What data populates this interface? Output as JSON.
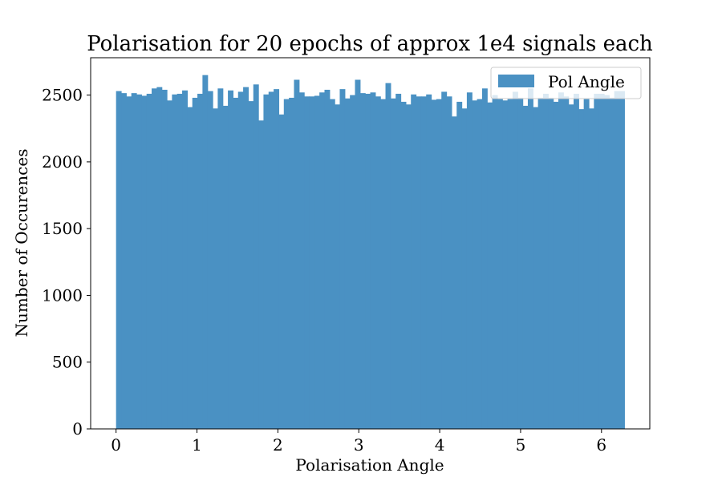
{
  "chart_data": {
    "type": "bar",
    "title": "Polarisation for 20 epochs of approx 1e4 signals each",
    "xlabel": "Polarisation Angle",
    "ylabel": "Number of Occurences",
    "xlim": [
      -0.314,
      6.597
    ],
    "ylim": [
      0,
      2780
    ],
    "bin_range": [
      0,
      6.2832
    ],
    "xticks": [
      0,
      1,
      2,
      3,
      4,
      5,
      6
    ],
    "yticks": [
      0,
      500,
      1000,
      1500,
      2000,
      2500
    ],
    "grid": false,
    "legend_position": "top-right",
    "bar_color": "#4a91c3",
    "series": [
      {
        "name": "Pol Angle",
        "values": [
          2530,
          2515,
          2490,
          2515,
          2505,
          2495,
          2510,
          2550,
          2560,
          2540,
          2460,
          2505,
          2510,
          2535,
          2410,
          2480,
          2510,
          2650,
          2530,
          2400,
          2550,
          2420,
          2535,
          2480,
          2525,
          2560,
          2455,
          2580,
          2310,
          2505,
          2525,
          2545,
          2355,
          2470,
          2480,
          2615,
          2520,
          2490,
          2490,
          2495,
          2520,
          2540,
          2470,
          2430,
          2545,
          2475,
          2500,
          2615,
          2515,
          2510,
          2520,
          2490,
          2470,
          2590,
          2475,
          2510,
          2450,
          2430,
          2505,
          2490,
          2490,
          2505,
          2465,
          2470,
          2525,
          2490,
          2340,
          2450,
          2400,
          2520,
          2460,
          2470,
          2550,
          2445,
          2500,
          2470,
          2460,
          2470,
          2525,
          2480,
          2420,
          2550,
          2410,
          2480,
          2510,
          2480,
          2450,
          2520,
          2490,
          2430,
          2510,
          2395,
          2470,
          2400,
          2510,
          2510,
          2500,
          2480,
          2530,
          2530
        ]
      }
    ]
  }
}
